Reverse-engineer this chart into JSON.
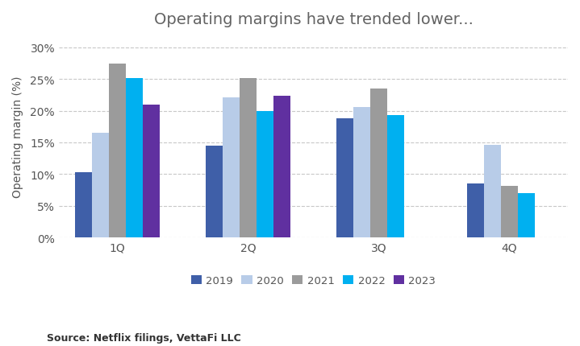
{
  "title": "Operating margins have trended lower...",
  "ylabel": "Operating margin (%)",
  "source": "Source: Netflix filings, VettaFi LLC",
  "categories": [
    "1Q",
    "2Q",
    "3Q",
    "4Q"
  ],
  "series": {
    "2019": [
      10.3,
      14.5,
      18.8,
      8.5
    ],
    "2020": [
      16.5,
      22.1,
      20.6,
      14.6
    ],
    "2021": [
      27.4,
      25.2,
      23.5,
      8.2
    ],
    "2022": [
      25.1,
      19.9,
      19.3,
      7.0
    ],
    "2023": [
      21.0,
      22.3,
      null,
      null
    ]
  },
  "colors": {
    "2019": "#3f5fa8",
    "2020": "#b8cce8",
    "2021": "#9b9b9b",
    "2022": "#00b0f0",
    "2023": "#6030a0"
  },
  "ylim": [
    0,
    32
  ],
  "yticks": [
    0,
    5,
    10,
    15,
    20,
    25,
    30
  ],
  "ytick_labels": [
    "0%",
    "5%",
    "10%",
    "15%",
    "20%",
    "25%",
    "30%"
  ],
  "background_color": "#ffffff",
  "grid_color": "#c8c8c8",
  "title_fontsize": 14,
  "axis_label_fontsize": 10,
  "tick_fontsize": 10,
  "legend_fontsize": 9.5,
  "source_fontsize": 9
}
